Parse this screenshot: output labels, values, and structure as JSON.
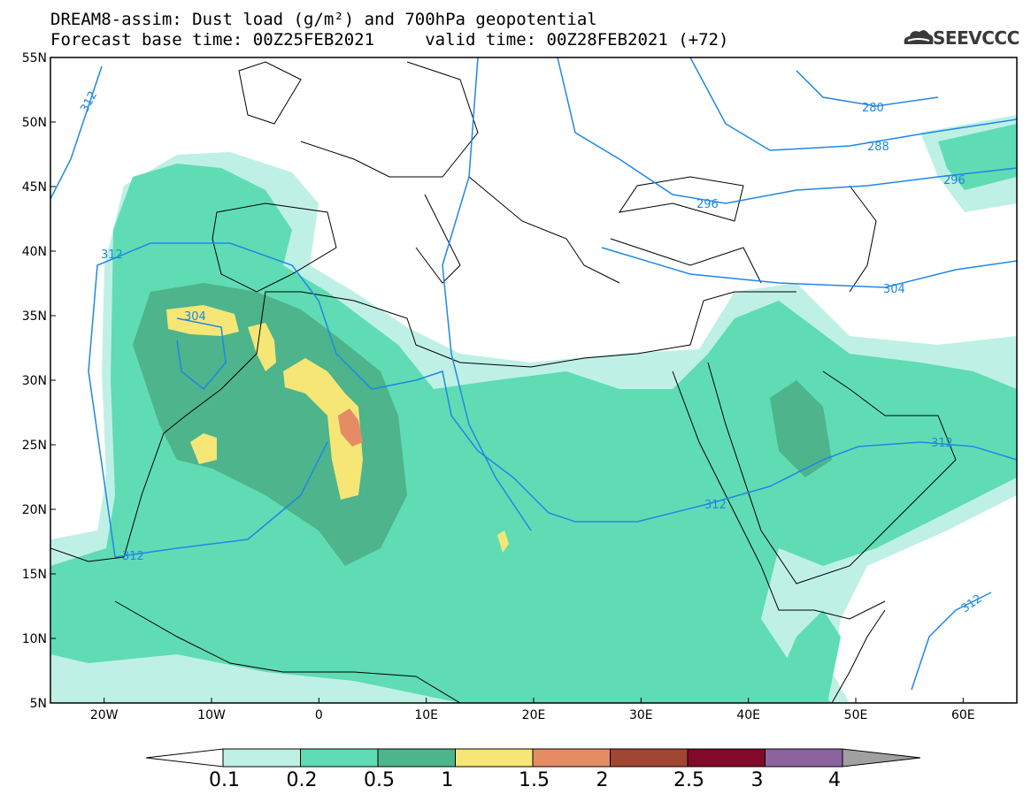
{
  "header": {
    "title_line1": "DREAM8-assim: Dust load (g/m²) and 700hPa geopotential",
    "title_line2": "Forecast base time: 00Z25FEB2021     valid time: 00Z28FEB2021 (+72)",
    "logo_text": "SEEVCCC"
  },
  "map": {
    "lon_range": [
      -25,
      65
    ],
    "lat_range": [
      5,
      55
    ],
    "lat_ticks": [
      "55N",
      "50N",
      "45N",
      "40N",
      "35N",
      "30N",
      "25N",
      "20N",
      "15N",
      "10N",
      "5N"
    ],
    "lon_ticks": [
      "20W",
      "10W",
      "0",
      "10E",
      "20E",
      "30E",
      "40E",
      "50E",
      "60E"
    ],
    "contour_color": "#1e88e5",
    "contour_labels": [
      "312",
      "280",
      "288",
      "296",
      "296",
      "312",
      "304",
      "304",
      "312",
      "312",
      "312",
      "312"
    ]
  },
  "colorbar": {
    "levels": [
      "0.1",
      "0.2",
      "0.5",
      "1",
      "1.5",
      "2",
      "2.5",
      "3",
      "4"
    ],
    "colors": [
      "#bff0e6",
      "#5fdcb4",
      "#4db48c",
      "#f5e676",
      "#e68c64",
      "#a04632",
      "#820a28",
      "#8c64a0",
      "#a0a0a0"
    ]
  }
}
